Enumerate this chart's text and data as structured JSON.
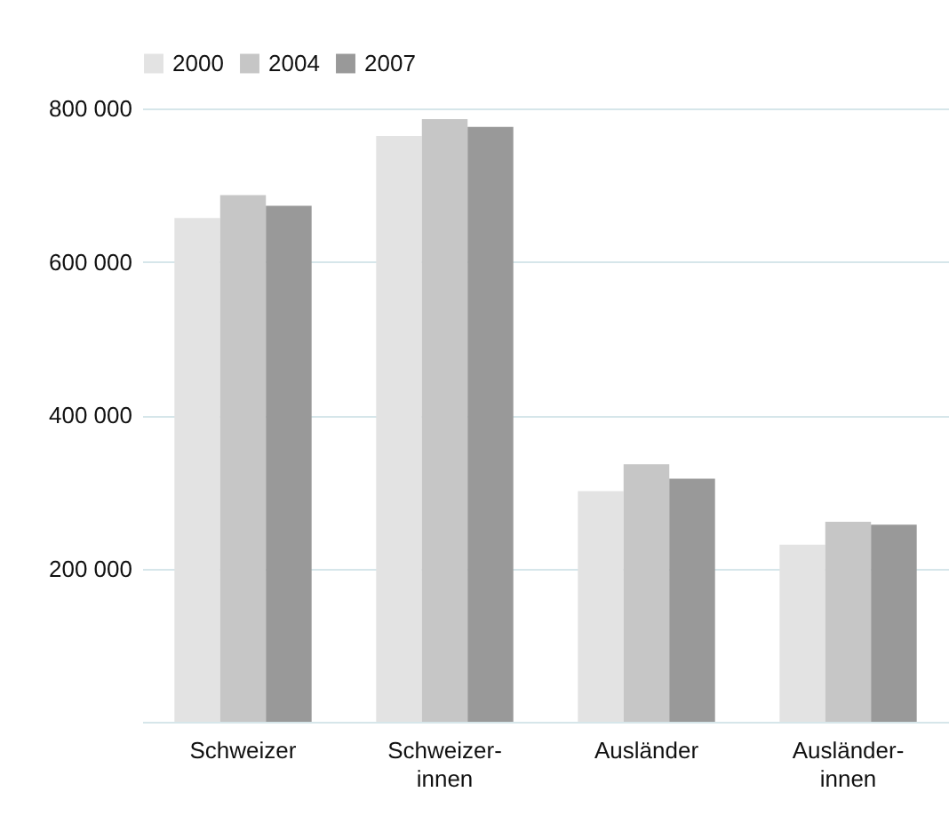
{
  "chart_data": {
    "type": "bar",
    "categories": [
      "Schweizer",
      "Schweizer-\ninnen",
      "Ausländer",
      "Ausländer-\ninnen"
    ],
    "series": [
      {
        "name": "2000",
        "color": "#e3e3e3",
        "values": [
          657000,
          764000,
          301000,
          231000
        ]
      },
      {
        "name": "2004",
        "color": "#c6c6c6",
        "values": [
          687000,
          786000,
          336000,
          261000
        ]
      },
      {
        "name": "2007",
        "color": "#999999",
        "values": [
          673000,
          776000,
          317000,
          257000
        ]
      }
    ],
    "ylim": [
      0,
      800000
    ],
    "yticks": [
      {
        "value": 200000,
        "label": "200 000"
      },
      {
        "value": 400000,
        "label": "400 000"
      },
      {
        "value": 600000,
        "label": "600 000"
      },
      {
        "value": 800000,
        "label": "800 000"
      }
    ],
    "grid": "y",
    "legend": "top"
  }
}
